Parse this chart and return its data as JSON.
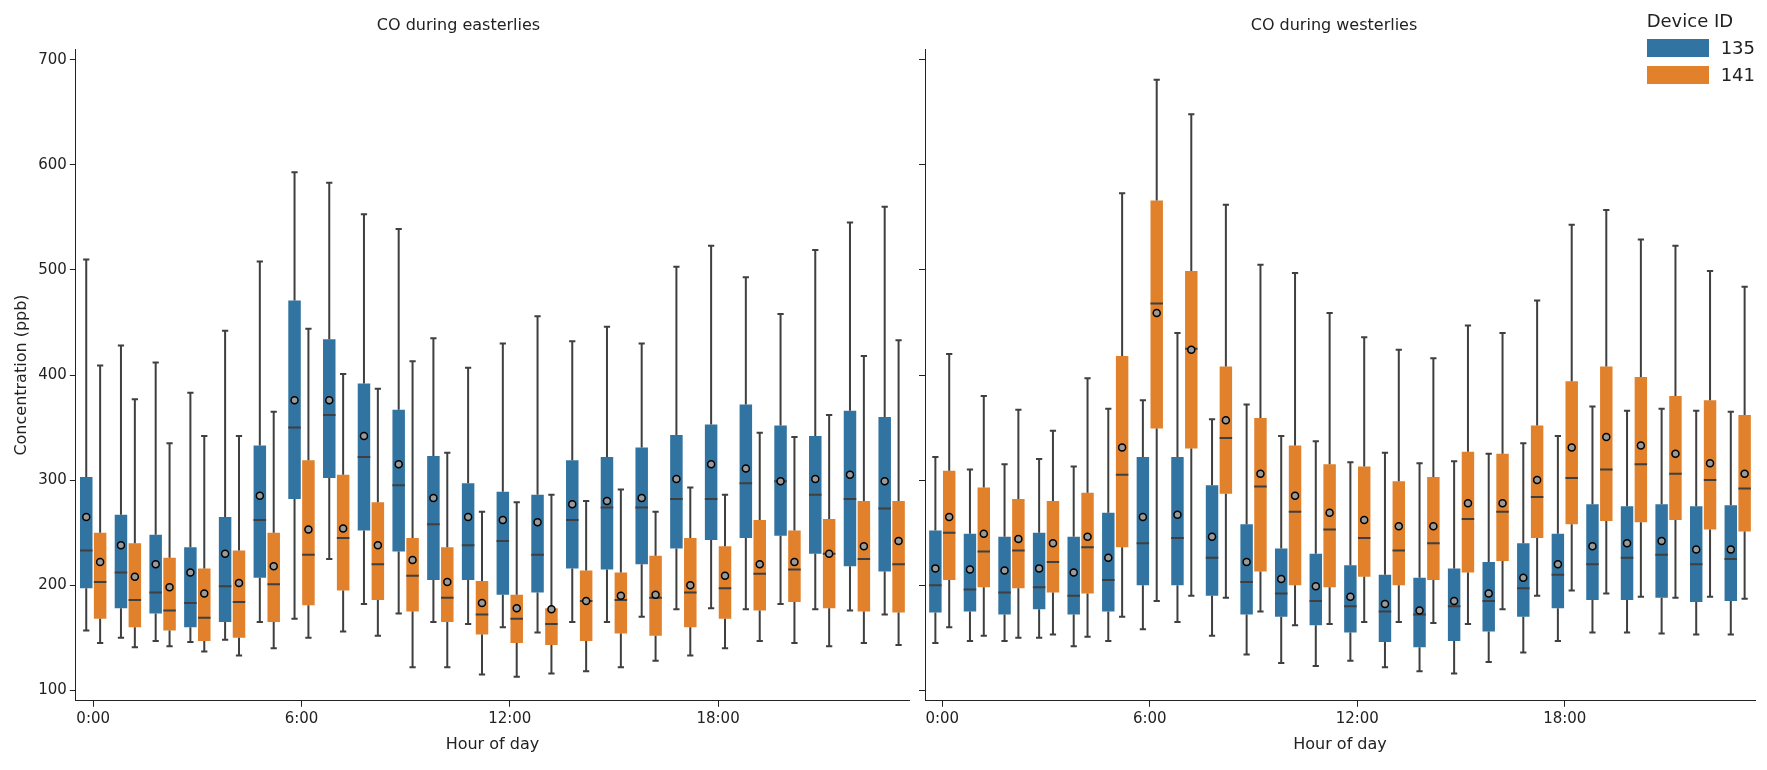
{
  "chart_data": [
    {
      "type": "box",
      "title": "CO during easterlies",
      "xlabel": "Hour of day",
      "ylabel": "Concentration (ppb)",
      "ylim": [
        90,
        710
      ],
      "yticks": [
        100,
        200,
        300,
        400,
        500,
        600,
        700
      ],
      "legend": false,
      "categories": [
        "0:00",
        null,
        null,
        null,
        null,
        null,
        "6:00",
        null,
        null,
        null,
        null,
        null,
        "12:00",
        null,
        null,
        null,
        null,
        null,
        "18:00",
        null,
        null,
        null,
        null,
        null
      ],
      "series": [
        {
          "color": "#3274a1",
          "boxes": [
            {
              "low": 157,
              "q1": 197,
              "median": 233,
              "q3": 303,
              "high": 510,
              "mean": 265
            },
            {
              "low": 150,
              "q1": 178,
              "median": 212,
              "q3": 267,
              "high": 428,
              "mean": 238
            },
            {
              "low": 147,
              "q1": 173,
              "median": 193,
              "q3": 248,
              "high": 412,
              "mean": 220
            },
            {
              "low": 146,
              "q1": 160,
              "median": 183,
              "q3": 236,
              "high": 383,
              "mean": 212
            },
            {
              "low": 148,
              "q1": 165,
              "median": 199,
              "q3": 265,
              "high": 442,
              "mean": 230
            },
            {
              "low": 165,
              "q1": 207,
              "median": 262,
              "q3": 333,
              "high": 508,
              "mean": 285
            },
            {
              "low": 168,
              "q1": 282,
              "median": 350,
              "q3": 471,
              "high": 593,
              "mean": 376
            },
            {
              "low": 225,
              "q1": 302,
              "median": 362,
              "q3": 434,
              "high": 583,
              "mean": 376
            },
            {
              "low": 182,
              "q1": 252,
              "median": 322,
              "q3": 392,
              "high": 553,
              "mean": 342
            },
            {
              "low": 173,
              "q1": 232,
              "median": 295,
              "q3": 367,
              "high": 539,
              "mean": 315
            },
            {
              "low": 165,
              "q1": 205,
              "median": 258,
              "q3": 323,
              "high": 435,
              "mean": 283
            },
            {
              "low": 163,
              "q1": 205,
              "median": 238,
              "q3": 297,
              "high": 407,
              "mean": 265
            },
            {
              "low": 160,
              "q1": 191,
              "median": 242,
              "q3": 289,
              "high": 430,
              "mean": 262
            },
            {
              "low": 155,
              "q1": 193,
              "median": 229,
              "q3": 286,
              "high": 456,
              "mean": 260
            },
            {
              "low": 165,
              "q1": 216,
              "median": 262,
              "q3": 319,
              "high": 432,
              "mean": 277
            },
            {
              "low": 165,
              "q1": 215,
              "median": 274,
              "q3": 322,
              "high": 446,
              "mean": 280
            },
            {
              "low": 170,
              "q1": 220,
              "median": 274,
              "q3": 331,
              "high": 430,
              "mean": 283
            },
            {
              "low": 177,
              "q1": 235,
              "median": 282,
              "q3": 343,
              "high": 503,
              "mean": 301
            },
            {
              "low": 178,
              "q1": 243,
              "median": 282,
              "q3": 353,
              "high": 523,
              "mean": 315
            },
            {
              "low": 177,
              "q1": 245,
              "median": 297,
              "q3": 372,
              "high": 493,
              "mean": 311
            },
            {
              "low": 182,
              "q1": 247,
              "median": 299,
              "q3": 352,
              "high": 458,
              "mean": 299
            },
            {
              "low": 177,
              "q1": 230,
              "median": 286,
              "q3": 342,
              "high": 519,
              "mean": 301
            },
            {
              "low": 176,
              "q1": 218,
              "median": 282,
              "q3": 366,
              "high": 545,
              "mean": 305
            },
            {
              "low": 172,
              "q1": 213,
              "median": 273,
              "q3": 360,
              "high": 560,
              "mean": 299
            }
          ]
        },
        {
          "color": "#e1812c",
          "boxes": [
            {
              "low": 145,
              "q1": 168,
              "median": 203,
              "q3": 250,
              "high": 409,
              "mean": 222
            },
            {
              "low": 141,
              "q1": 160,
              "median": 186,
              "q3": 240,
              "high": 377,
              "mean": 208
            },
            {
              "low": 142,
              "q1": 157,
              "median": 176,
              "q3": 226,
              "high": 335,
              "mean": 198
            },
            {
              "low": 137,
              "q1": 147,
              "median": 169,
              "q3": 216,
              "high": 342,
              "mean": 192
            },
            {
              "low": 133,
              "q1": 150,
              "median": 184,
              "q3": 233,
              "high": 342,
              "mean": 202
            },
            {
              "low": 140,
              "q1": 165,
              "median": 201,
              "q3": 250,
              "high": 365,
              "mean": 218
            },
            {
              "low": 150,
              "q1": 181,
              "median": 229,
              "q3": 319,
              "high": 444,
              "mean": 253
            },
            {
              "low": 156,
              "q1": 195,
              "median": 245,
              "q3": 305,
              "high": 401,
              "mean": 254
            },
            {
              "low": 152,
              "q1": 186,
              "median": 220,
              "q3": 279,
              "high": 387,
              "mean": 238
            },
            {
              "low": 122,
              "q1": 175,
              "median": 209,
              "q3": 245,
              "high": 413,
              "mean": 224
            },
            {
              "low": 122,
              "q1": 165,
              "median": 188,
              "q3": 236,
              "high": 326,
              "mean": 203
            },
            {
              "low": 115,
              "q1": 153,
              "median": 172,
              "q3": 204,
              "high": 270,
              "mean": 183
            },
            {
              "low": 113,
              "q1": 145,
              "median": 168,
              "q3": 191,
              "high": 279,
              "mean": 178
            },
            {
              "low": 116,
              "q1": 143,
              "median": 163,
              "q3": 178,
              "high": 286,
              "mean": 177
            },
            {
              "low": 118,
              "q1": 147,
              "median": 185,
              "q3": 214,
              "high": 280,
              "mean": 185
            },
            {
              "low": 122,
              "q1": 154,
              "median": 186,
              "q3": 212,
              "high": 291,
              "mean": 190
            },
            {
              "low": 128,
              "q1": 152,
              "median": 188,
              "q3": 228,
              "high": 270,
              "mean": 191
            },
            {
              "low": 133,
              "q1": 160,
              "median": 193,
              "q3": 245,
              "high": 293,
              "mean": 200
            },
            {
              "low": 140,
              "q1": 168,
              "median": 197,
              "q3": 237,
              "high": 286,
              "mean": 209
            },
            {
              "low": 147,
              "q1": 176,
              "median": 211,
              "q3": 262,
              "high": 345,
              "mean": 220
            },
            {
              "low": 145,
              "q1": 184,
              "median": 215,
              "q3": 252,
              "high": 341,
              "mean": 222
            },
            {
              "low": 142,
              "q1": 178,
              "median": 230,
              "q3": 263,
              "high": 362,
              "mean": 230
            },
            {
              "low": 145,
              "q1": 175,
              "median": 225,
              "q3": 280,
              "high": 418,
              "mean": 237
            },
            {
              "low": 143,
              "q1": 174,
              "median": 220,
              "q3": 280,
              "high": 433,
              "mean": 242
            }
          ]
        }
      ]
    },
    {
      "type": "box",
      "title": "CO during westerlies",
      "xlabel": "Hour of day",
      "ylim": [
        90,
        710
      ],
      "yticks": [
        100,
        200,
        300,
        400,
        500,
        600,
        700
      ],
      "tick_labels": "x",
      "legend": "top right",
      "legend_title": "Device ID",
      "categories": [
        "0:00",
        null,
        null,
        null,
        null,
        null,
        "6:00",
        null,
        null,
        null,
        null,
        null,
        "12:00",
        null,
        null,
        null,
        null,
        null,
        "18:00",
        null,
        null,
        null,
        null,
        null
      ],
      "series": [
        {
          "name": "135",
          "color": "#3274a1",
          "boxes": [
            {
              "low": 145,
              "q1": 174,
              "median": 200,
              "q3": 252,
              "high": 322,
              "mean": 216
            },
            {
              "low": 147,
              "q1": 175,
              "median": 196,
              "q3": 249,
              "high": 310,
              "mean": 215
            },
            {
              "low": 147,
              "q1": 172,
              "median": 193,
              "q3": 246,
              "high": 315,
              "mean": 214
            },
            {
              "low": 150,
              "q1": 177,
              "median": 198,
              "q3": 250,
              "high": 320,
              "mean": 216
            },
            {
              "low": 142,
              "q1": 172,
              "median": 190,
              "q3": 246,
              "high": 313,
              "mean": 212
            },
            {
              "low": 147,
              "q1": 175,
              "median": 205,
              "q3": 269,
              "high": 368,
              "mean": 226
            },
            {
              "low": 158,
              "q1": 200,
              "median": 240,
              "q3": 322,
              "high": 376,
              "mean": 265
            },
            {
              "low": 165,
              "q1": 200,
              "median": 245,
              "q3": 322,
              "high": 440,
              "mean": 267
            },
            {
              "low": 152,
              "q1": 190,
              "median": 226,
              "q3": 295,
              "high": 358,
              "mean": 246
            },
            {
              "low": 134,
              "q1": 172,
              "median": 203,
              "q3": 258,
              "high": 372,
              "mean": 222
            },
            {
              "low": 126,
              "q1": 170,
              "median": 192,
              "q3": 235,
              "high": 342,
              "mean": 206
            },
            {
              "low": 123,
              "q1": 162,
              "median": 185,
              "q3": 230,
              "high": 337,
              "mean": 199
            },
            {
              "low": 128,
              "q1": 155,
              "median": 180,
              "q3": 219,
              "high": 317,
              "mean": 189
            },
            {
              "low": 122,
              "q1": 146,
              "median": 175,
              "q3": 210,
              "high": 326,
              "mean": 182
            },
            {
              "low": 118,
              "q1": 141,
              "median": 172,
              "q3": 207,
              "high": 316,
              "mean": 176
            },
            {
              "low": 116,
              "q1": 147,
              "median": 180,
              "q3": 216,
              "high": 318,
              "mean": 185
            },
            {
              "low": 127,
              "q1": 156,
              "median": 185,
              "q3": 222,
              "high": 325,
              "mean": 192
            },
            {
              "low": 136,
              "q1": 170,
              "median": 197,
              "q3": 240,
              "high": 335,
              "mean": 207
            },
            {
              "low": 147,
              "q1": 178,
              "median": 210,
              "q3": 249,
              "high": 342,
              "mean": 220
            },
            {
              "low": 155,
              "q1": 186,
              "median": 220,
              "q3": 277,
              "high": 370,
              "mean": 237
            },
            {
              "low": 155,
              "q1": 186,
              "median": 226,
              "q3": 275,
              "high": 366,
              "mean": 240
            },
            {
              "low": 154,
              "q1": 188,
              "median": 229,
              "q3": 277,
              "high": 368,
              "mean": 242
            },
            {
              "low": 153,
              "q1": 184,
              "median": 220,
              "q3": 275,
              "high": 366,
              "mean": 234
            },
            {
              "low": 153,
              "q1": 185,
              "median": 225,
              "q3": 276,
              "high": 365,
              "mean": 234
            }
          ]
        },
        {
          "name": "141",
          "color": "#e1812c",
          "boxes": [
            {
              "low": 160,
              "q1": 205,
              "median": 250,
              "q3": 309,
              "high": 420,
              "mean": 265
            },
            {
              "low": 152,
              "q1": 198,
              "median": 232,
              "q3": 293,
              "high": 380,
              "mean": 249
            },
            {
              "low": 150,
              "q1": 197,
              "median": 233,
              "q3": 282,
              "high": 367,
              "mean": 244
            },
            {
              "low": 153,
              "q1": 193,
              "median": 222,
              "q3": 280,
              "high": 347,
              "mean": 240
            },
            {
              "low": 151,
              "q1": 192,
              "median": 236,
              "q3": 288,
              "high": 397,
              "mean": 246
            },
            {
              "low": 170,
              "q1": 236,
              "median": 305,
              "q3": 418,
              "high": 573,
              "mean": 331
            },
            {
              "low": 185,
              "q1": 349,
              "median": 468,
              "q3": 566,
              "high": 681,
              "mean": 459
            },
            {
              "low": 190,
              "q1": 330,
              "median": 425,
              "q3": 499,
              "high": 648,
              "mean": 424
            },
            {
              "low": 188,
              "q1": 287,
              "median": 340,
              "q3": 408,
              "high": 562,
              "mean": 357
            },
            {
              "low": 175,
              "q1": 213,
              "median": 294,
              "q3": 359,
              "high": 505,
              "mean": 306
            },
            {
              "low": 162,
              "q1": 200,
              "median": 270,
              "q3": 333,
              "high": 497,
              "mean": 285
            },
            {
              "low": 163,
              "q1": 198,
              "median": 253,
              "q3": 315,
              "high": 459,
              "mean": 269
            },
            {
              "low": 165,
              "q1": 208,
              "median": 245,
              "q3": 313,
              "high": 436,
              "mean": 262
            },
            {
              "low": 165,
              "q1": 200,
              "median": 233,
              "q3": 299,
              "high": 424,
              "mean": 256
            },
            {
              "low": 164,
              "q1": 205,
              "median": 240,
              "q3": 303,
              "high": 416,
              "mean": 256
            },
            {
              "low": 163,
              "q1": 212,
              "median": 263,
              "q3": 327,
              "high": 447,
              "mean": 278
            },
            {
              "low": 177,
              "q1": 223,
              "median": 270,
              "q3": 325,
              "high": 440,
              "mean": 278
            },
            {
              "low": 190,
              "q1": 245,
              "median": 284,
              "q3": 352,
              "high": 471,
              "mean": 300
            },
            {
              "low": 195,
              "q1": 258,
              "median": 302,
              "q3": 394,
              "high": 543,
              "mean": 331
            },
            {
              "low": 192,
              "q1": 261,
              "median": 310,
              "q3": 408,
              "high": 557,
              "mean": 341
            },
            {
              "low": 189,
              "q1": 260,
              "median": 315,
              "q3": 398,
              "high": 529,
              "mean": 333
            },
            {
              "low": 188,
              "q1": 262,
              "median": 306,
              "q3": 380,
              "high": 523,
              "mean": 325
            },
            {
              "low": 189,
              "q1": 253,
              "median": 300,
              "q3": 376,
              "high": 499,
              "mean": 316
            },
            {
              "low": 187,
              "q1": 251,
              "median": 292,
              "q3": 362,
              "high": 484,
              "mean": 306
            }
          ]
        }
      ]
    }
  ]
}
